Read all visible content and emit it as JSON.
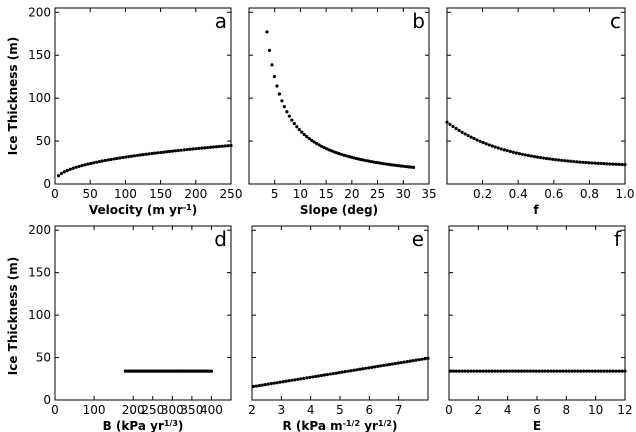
{
  "shared_ylabel": "Ice Thickness (m)",
  "dot_color": "#000000",
  "chart_data": [
    {
      "type": "scatter",
      "letter": "a",
      "xlabel": "Velocity (m yr",
      "xlabel_sup": "-1",
      "xlabel_tail": ")",
      "ylabel": "Ice Thickness (m)",
      "xlim": [
        0,
        250
      ],
      "ylim": [
        0,
        205
      ],
      "xticks": [
        {
          "v": 0,
          "label": "0"
        },
        {
          "v": 50,
          "label": "50"
        },
        {
          "v": 100,
          "label": "100"
        },
        {
          "v": 150,
          "label": "150"
        },
        {
          "v": 200,
          "label": "200"
        },
        {
          "v": 250,
          "label": "250"
        }
      ],
      "yticks": [
        {
          "v": 50,
          "label": "50"
        },
        {
          "v": 100,
          "label": "100"
        },
        {
          "v": 150,
          "label": "150"
        },
        {
          "v": 200,
          "label": "200"
        }
      ],
      "curve": {
        "kind": "power",
        "x0": 5,
        "x1": 250,
        "n": 60,
        "a": 5.1,
        "b": 0.394
      }
    },
    {
      "type": "scatter",
      "letter": "b",
      "xlabel": "Slope (deg)",
      "xlim": [
        0,
        35
      ],
      "ylim": [
        0,
        205
      ],
      "xticks": [
        {
          "v": 5,
          "label": "5"
        },
        {
          "v": 10,
          "label": "10"
        },
        {
          "v": 15,
          "label": "15"
        },
        {
          "v": 20,
          "label": "20"
        },
        {
          "v": 25,
          "label": "25"
        },
        {
          "v": 30,
          "label": "30"
        },
        {
          "v": 35,
          "label": "35"
        }
      ],
      "yticks": [],
      "curve": {
        "kind": "inverse",
        "x0": 3.5,
        "x1": 32,
        "n": 60,
        "a": 620
      }
    },
    {
      "type": "scatter",
      "letter": "c",
      "xlabel": "f",
      "xlim": [
        0,
        1.0
      ],
      "ylim": [
        0,
        205
      ],
      "xticks": [
        {
          "v": 0.2,
          "label": "0.2"
        },
        {
          "v": 0.4,
          "label": "0.4"
        },
        {
          "v": 0.6,
          "label": "0.6"
        },
        {
          "v": 0.8,
          "label": "0.8"
        },
        {
          "v": 1.0,
          "label": "1.0"
        }
      ],
      "yticks": [],
      "curve": {
        "kind": "decay",
        "x0": 0.0,
        "x1": 1.0,
        "n": 60,
        "c": 20,
        "d": 52,
        "k": 3.0
      }
    },
    {
      "type": "scatter",
      "letter": "d",
      "xlabel": "B (kPa yr",
      "xlabel_sup": "1/3",
      "xlabel_tail": ")",
      "ylabel": "Ice Thickness (m)",
      "xlim": [
        0,
        450
      ],
      "ylim": [
        0,
        205
      ],
      "xticks": [
        {
          "v": 0,
          "label": "0"
        },
        {
          "v": 100,
          "label": "100"
        },
        {
          "v": 200,
          "label": "200"
        },
        {
          "v": 250,
          "label": "250"
        },
        {
          "v": 300,
          "label": "300"
        },
        {
          "v": 350,
          "label": "350"
        },
        {
          "v": 400,
          "label": "400"
        }
      ],
      "yticks": [
        {
          "v": 50,
          "label": "50"
        },
        {
          "v": 100,
          "label": "100"
        },
        {
          "v": 150,
          "label": "150"
        },
        {
          "v": 200,
          "label": "200"
        }
      ],
      "curve": {
        "kind": "const",
        "x0": 180,
        "x1": 400,
        "n": 55,
        "y": 34
      }
    },
    {
      "type": "scatter",
      "letter": "e",
      "xlabel": "R (kPa m",
      "xlabel_sup": "-1/2",
      "xlabel_mid": " yr",
      "xlabel_sup2": "1/2",
      "xlabel_tail": ")",
      "xlim": [
        2,
        8
      ],
      "ylim": [
        0,
        205
      ],
      "xticks": [
        {
          "v": 2,
          "label": "2"
        },
        {
          "v": 3,
          "label": "3"
        },
        {
          "v": 4,
          "label": "4"
        },
        {
          "v": 5,
          "label": "5"
        },
        {
          "v": 6,
          "label": "6"
        },
        {
          "v": 7,
          "label": "7"
        }
      ],
      "yticks": [],
      "curve": {
        "kind": "linear",
        "x0": 2.05,
        "x1": 8.0,
        "n": 60,
        "m": 5.6,
        "c": 4.4
      }
    },
    {
      "type": "scatter",
      "letter": "f",
      "xlabel": "E",
      "xlim": [
        0,
        12
      ],
      "ylim": [
        0,
        205
      ],
      "xticks": [
        {
          "v": 0,
          "label": "0"
        },
        {
          "v": 2,
          "label": "2"
        },
        {
          "v": 4,
          "label": "4"
        },
        {
          "v": 6,
          "label": "6"
        },
        {
          "v": 8,
          "label": "8"
        },
        {
          "v": 10,
          "label": "10"
        },
        {
          "v": 12,
          "label": "12"
        }
      ],
      "yticks": [],
      "curve": {
        "kind": "const",
        "x0": 0.1,
        "x1": 12.0,
        "n": 60,
        "y": 34
      }
    }
  ]
}
